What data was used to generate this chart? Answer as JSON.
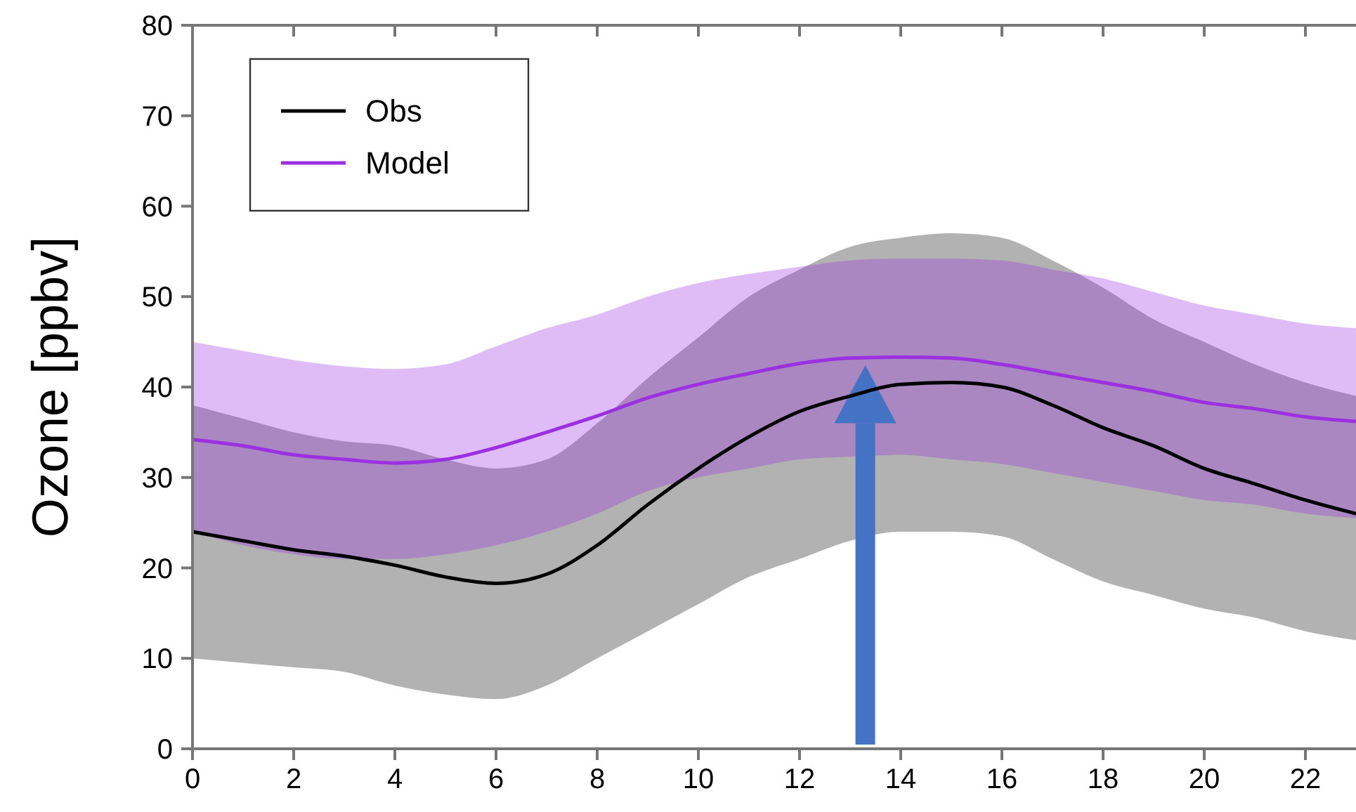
{
  "chart_data": {
    "type": "line",
    "ylabel": "Ozone [ppbv]",
    "x": [
      0,
      1,
      2,
      3,
      4,
      5,
      6,
      7,
      8,
      9,
      10,
      11,
      12,
      13,
      14,
      15,
      16,
      17,
      18,
      19,
      20,
      21,
      22,
      23
    ],
    "series": [
      {
        "name": "Obs",
        "color": "#000000",
        "values": [
          24,
          23,
          22,
          21.3,
          20.3,
          19,
          18.3,
          19.3,
          22.5,
          27,
          31,
          34.5,
          37.3,
          39,
          40.3,
          40.5,
          40,
          38,
          35.5,
          33.5,
          31,
          29.3,
          27.5,
          26
        ],
        "lower": [
          10,
          9.5,
          9,
          8.5,
          7,
          6,
          5.5,
          7,
          10,
          13,
          16,
          19,
          21,
          23,
          24,
          24,
          23.5,
          21,
          18.5,
          17,
          15.5,
          14.5,
          13,
          12
        ],
        "upper": [
          38,
          36.5,
          35,
          34,
          33.5,
          32,
          31,
          32,
          36,
          41,
          45.5,
          50,
          53,
          55.5,
          56.5,
          57,
          56.5,
          54,
          51,
          47.5,
          45,
          42.5,
          40.5,
          39
        ]
      },
      {
        "name": "Model",
        "color": "#9b30e0",
        "values": [
          34.2,
          33.5,
          32.5,
          32,
          31.6,
          32,
          33.3,
          35,
          36.8,
          38.8,
          40.3,
          41.5,
          42.6,
          43.2,
          43.3,
          43.2,
          42.5,
          41.5,
          40.5,
          39.5,
          38.3,
          37.6,
          36.7,
          36.2
        ],
        "lower": [
          24,
          22.5,
          21.5,
          21,
          21,
          21.5,
          22.5,
          24,
          26,
          28.5,
          30,
          31,
          32,
          32.3,
          32.5,
          32,
          31.5,
          30.5,
          29.5,
          28.5,
          27.5,
          27,
          26,
          25.5
        ],
        "upper": [
          45,
          44,
          43,
          42.3,
          42,
          42.5,
          44.5,
          46.5,
          48,
          50,
          51.5,
          52.5,
          53.3,
          54,
          54.2,
          54.2,
          54,
          53,
          52,
          50.5,
          49,
          48,
          47,
          46.5
        ]
      }
    ],
    "xlim": [
      0,
      23
    ],
    "ylim": [
      0,
      80
    ],
    "xticks": [
      0,
      2,
      4,
      6,
      8,
      10,
      12,
      14,
      16,
      18,
      20,
      22
    ],
    "yticks": [
      0,
      10,
      20,
      30,
      40,
      50,
      60,
      70,
      80
    ],
    "grid": false,
    "legend": "top left",
    "marker": "none",
    "line_style": "solid"
  }
}
